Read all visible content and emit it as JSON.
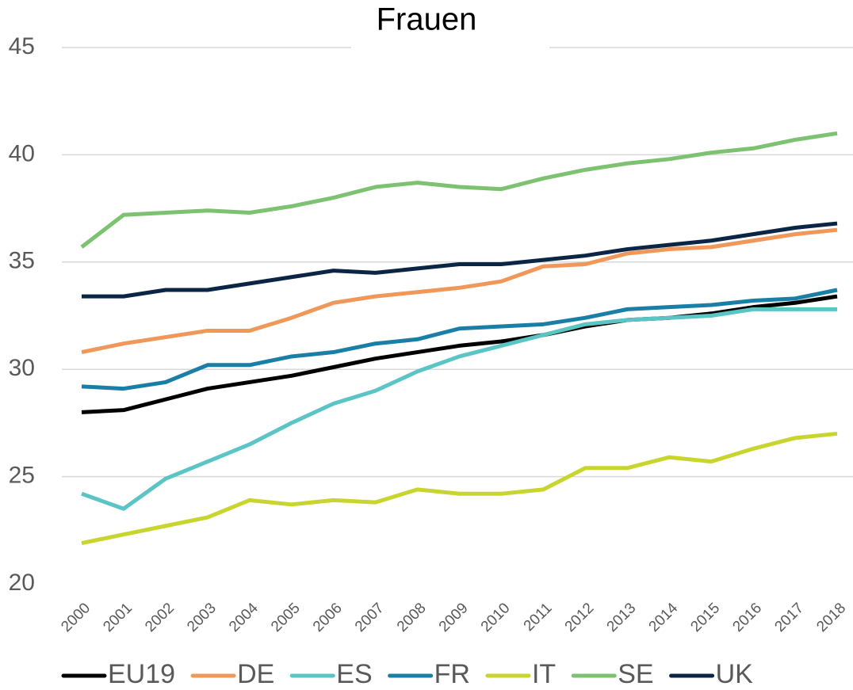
{
  "chart_data": {
    "type": "line",
    "title": "Frauen",
    "categories": [
      "2000",
      "2001",
      "2002",
      "2003",
      "2004",
      "2005",
      "2006",
      "2007",
      "2008",
      "2009",
      "2010",
      "2011",
      "2012",
      "2013",
      "2014",
      "2015",
      "2016",
      "2017",
      "2018"
    ],
    "series": [
      {
        "name": "EU19",
        "color": "#000000",
        "values": [
          28.0,
          28.1,
          28.6,
          29.1,
          29.4,
          29.7,
          30.1,
          30.5,
          30.8,
          31.1,
          31.3,
          31.6,
          32.0,
          32.3,
          32.4,
          32.6,
          32.9,
          33.1,
          33.4
        ]
      },
      {
        "name": "DE",
        "color": "#f0975a",
        "values": [
          30.8,
          31.2,
          31.5,
          31.8,
          31.8,
          32.4,
          33.1,
          33.4,
          33.6,
          33.8,
          34.1,
          34.8,
          34.9,
          35.4,
          35.6,
          35.7,
          36.0,
          36.3,
          36.5
        ]
      },
      {
        "name": "ES",
        "color": "#5bc4c4",
        "values": [
          24.2,
          23.5,
          24.9,
          25.7,
          26.5,
          27.5,
          28.4,
          29.0,
          29.9,
          30.6,
          31.1,
          31.6,
          32.1,
          32.3,
          32.4,
          32.5,
          32.8,
          32.8,
          32.8
        ]
      },
      {
        "name": "FR",
        "color": "#1a7fa6",
        "values": [
          29.2,
          29.1,
          29.4,
          30.2,
          30.2,
          30.6,
          30.8,
          31.2,
          31.4,
          31.9,
          32.0,
          32.1,
          32.4,
          32.8,
          32.9,
          33.0,
          33.2,
          33.3,
          33.7
        ]
      },
      {
        "name": "IT",
        "color": "#c8d52e",
        "values": [
          21.9,
          22.3,
          22.7,
          23.1,
          23.9,
          23.7,
          23.9,
          23.8,
          24.4,
          24.2,
          24.2,
          24.4,
          25.4,
          25.4,
          25.9,
          25.7,
          26.3,
          26.8,
          27.0
        ]
      },
      {
        "name": "SE",
        "color": "#7cc271",
        "values": [
          35.7,
          37.2,
          37.3,
          37.4,
          37.3,
          37.6,
          38.0,
          38.5,
          38.7,
          38.5,
          38.4,
          38.9,
          39.3,
          39.6,
          39.8,
          40.1,
          40.3,
          40.7,
          41.0
        ]
      },
      {
        "name": "UK",
        "color": "#0b2545",
        "values": [
          33.4,
          33.4,
          33.7,
          33.7,
          34.0,
          34.3,
          34.6,
          34.5,
          34.7,
          34.9,
          34.9,
          35.1,
          35.3,
          35.6,
          35.8,
          36.0,
          36.3,
          36.6,
          36.8
        ]
      }
    ],
    "ylim": [
      20,
      45
    ],
    "yticks": [
      20,
      25,
      30,
      35,
      40,
      45
    ],
    "grid": true,
    "legend": "bottom"
  }
}
